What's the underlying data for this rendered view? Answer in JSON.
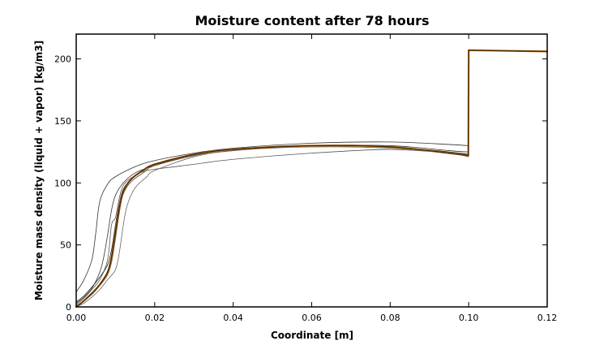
{
  "chart_data": {
    "type": "line",
    "title": "Moisture content after 78 hours",
    "xlabel": "Coordinate [m]",
    "ylabel": "Moisture mass density (liquid + vapor) [kg/m3]",
    "xlim": [
      0,
      0.12
    ],
    "ylim": [
      0,
      220
    ],
    "x_ticks": [
      0,
      0.02,
      0.04,
      0.06,
      0.08,
      0.1,
      0.12
    ],
    "x_tick_labels": [
      "0.00",
      "0.02",
      "0.04",
      "0.06",
      "0.08",
      "0.10",
      "0.12"
    ],
    "y_ticks": [
      0,
      50,
      100,
      150,
      200
    ],
    "y_tick_labels": [
      "0",
      "50",
      "100",
      "150",
      "200"
    ],
    "grid": false,
    "series": [
      {
        "color": "#333333",
        "width": 0.8,
        "x": [
          0,
          0.002,
          0.004,
          0.005,
          0.006,
          0.008,
          0.01,
          0.015,
          0.02,
          0.03,
          0.04,
          0.06,
          0.08,
          0.095,
          0.0999,
          0.1,
          0.12
        ],
        "y": [
          12,
          22,
          38,
          60,
          85,
          99,
          105,
          113,
          118,
          124,
          128,
          132,
          133,
          131,
          130,
          207,
          206
        ]
      },
      {
        "color": "#333333",
        "width": 0.8,
        "x": [
          0,
          0.002,
          0.004,
          0.006,
          0.007,
          0.008,
          0.009,
          0.01,
          0.012,
          0.015,
          0.02,
          0.03,
          0.04,
          0.06,
          0.08,
          0.095,
          0.0999,
          0.1,
          0.12
        ],
        "y": [
          3,
          8,
          15,
          28,
          40,
          58,
          78,
          90,
          100,
          108,
          114,
          122,
          126,
          130,
          130,
          126,
          125,
          207,
          206
        ]
      },
      {
        "color": "#555555",
        "width": 0.8,
        "x": [
          0,
          0.002,
          0.004,
          0.006,
          0.008,
          0.009,
          0.01,
          0.011,
          0.012,
          0.014,
          0.017,
          0.02,
          0.03,
          0.04,
          0.06,
          0.08,
          0.095,
          0.0999,
          0.1,
          0.12
        ],
        "y": [
          2,
          7,
          14,
          22,
          38,
          66,
          72,
          88,
          98,
          104,
          109,
          111,
          115,
          119,
          124,
          127,
          124,
          123,
          207,
          206
        ]
      },
      {
        "color": "#444444",
        "width": 0.8,
        "x": [
          0,
          0.002,
          0.004,
          0.006,
          0.008,
          0.009,
          0.01,
          0.011,
          0.012,
          0.014,
          0.017,
          0.02,
          0.03,
          0.04,
          0.06,
          0.08,
          0.095,
          0.0999,
          0.1,
          0.12
        ],
        "y": [
          1,
          5,
          10,
          17,
          26,
          36,
          55,
          76,
          91,
          101,
          108,
          114,
          123,
          127,
          130,
          129,
          124,
          122,
          207,
          206
        ]
      },
      {
        "color": "#222222",
        "width": 0.8,
        "x": [
          0,
          0.002,
          0.004,
          0.006,
          0.008,
          0.009,
          0.01,
          0.011,
          0.012,
          0.014,
          0.017,
          0.02,
          0.03,
          0.04,
          0.06,
          0.08,
          0.095,
          0.0999,
          0.1,
          0.12
        ],
        "y": [
          4,
          9,
          16,
          24,
          34,
          46,
          66,
          84,
          95,
          103,
          110,
          115,
          123,
          127,
          130,
          129,
          125,
          123,
          207,
          206
        ]
      },
      {
        "color": "#666666",
        "width": 0.8,
        "x": [
          0,
          0.002,
          0.004,
          0.006,
          0.008,
          0.01,
          0.011,
          0.012,
          0.013,
          0.015,
          0.018,
          0.02,
          0.03,
          0.04,
          0.06,
          0.08,
          0.095,
          0.0999,
          0.1,
          0.12
        ],
        "y": [
          0,
          3,
          8,
          14,
          22,
          30,
          44,
          66,
          82,
          96,
          105,
          110,
          121,
          126,
          129,
          128,
          124,
          121,
          207,
          206
        ]
      },
      {
        "color": "#d07a10",
        "width": 2.2,
        "x": [
          0,
          0.002,
          0.004,
          0.006,
          0.008,
          0.009,
          0.01,
          0.011,
          0.012,
          0.014,
          0.017,
          0.02,
          0.03,
          0.04,
          0.06,
          0.08,
          0.095,
          0.0999,
          0.1,
          0.12
        ],
        "y": [
          0,
          5,
          11,
          18,
          28,
          40,
          60,
          80,
          93,
          103,
          110,
          115,
          123,
          127,
          130,
          129,
          124,
          122,
          207,
          206
        ]
      },
      {
        "color": "#4a2a08",
        "width": 1.4,
        "x": [
          0,
          0.002,
          0.004,
          0.006,
          0.008,
          0.009,
          0.01,
          0.011,
          0.012,
          0.014,
          0.017,
          0.02,
          0.03,
          0.04,
          0.06,
          0.08,
          0.095,
          0.0999,
          0.1,
          0.12
        ],
        "y": [
          0,
          5,
          11,
          18,
          28,
          40,
          60,
          80,
          93,
          103,
          110,
          115,
          123,
          127,
          130,
          129,
          124,
          122,
          207,
          206
        ]
      }
    ]
  }
}
